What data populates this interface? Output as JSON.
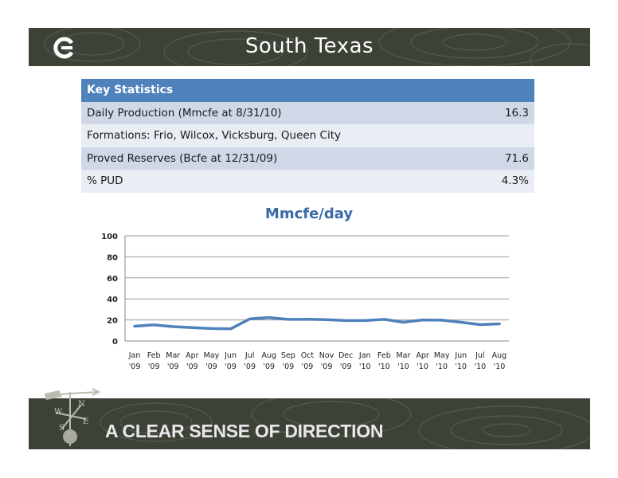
{
  "header": {
    "title": "South Texas"
  },
  "footer": {
    "tagline": "A CLEAR SENSE OF DIRECTION"
  },
  "colors": {
    "banner": "#3d4237",
    "table_header": "#4f81bd",
    "row_odd": "#d0d8e8",
    "row_even": "#e9edf4",
    "line": "#4f81bd",
    "chart_title": "#3a6aa8"
  },
  "icons": {
    "logo": "company-logo-icon",
    "weather_vane": "weather-vane-icon"
  },
  "stats": {
    "header": "Key Statistics",
    "rows": [
      {
        "label": "Daily Production (Mmcfe at 8/31/10)",
        "value": "16.3"
      },
      {
        "label": "Formations: Frio, Wilcox, Vicksburg, Queen City",
        "value": ""
      },
      {
        "label": "Proved Reserves (Bcfe at 12/31/09)",
        "value": "71.6"
      },
      {
        "label": "% PUD",
        "value": "4.3%"
      }
    ]
  },
  "chart_data": {
    "type": "line",
    "title": "Mmcfe/day",
    "xlabel": "",
    "ylabel": "",
    "categories": [
      "Jan '09",
      "Feb '09",
      "Mar '09",
      "Apr '09",
      "May '09",
      "Jun '09",
      "Jul '09",
      "Aug '09",
      "Sep '09",
      "Oct '09",
      "Nov '09",
      "Dec '09",
      "Jan '10",
      "Feb '10",
      "Mar '10",
      "Apr '10",
      "May '10",
      "Jun '10",
      "Jul '10",
      "Aug '10"
    ],
    "series": [
      {
        "values": [
          14.0,
          15.3,
          13.6,
          12.7,
          11.8,
          11.5,
          21.0,
          22.3,
          20.5,
          20.6,
          20.2,
          19.4,
          19.4,
          20.5,
          17.8,
          20.0,
          19.8,
          17.8,
          15.5,
          16.3
        ]
      }
    ],
    "ylim": [
      0,
      100
    ],
    "yticks": [
      0,
      20,
      40,
      60,
      80,
      100
    ],
    "grid": true,
    "legend": "none"
  }
}
